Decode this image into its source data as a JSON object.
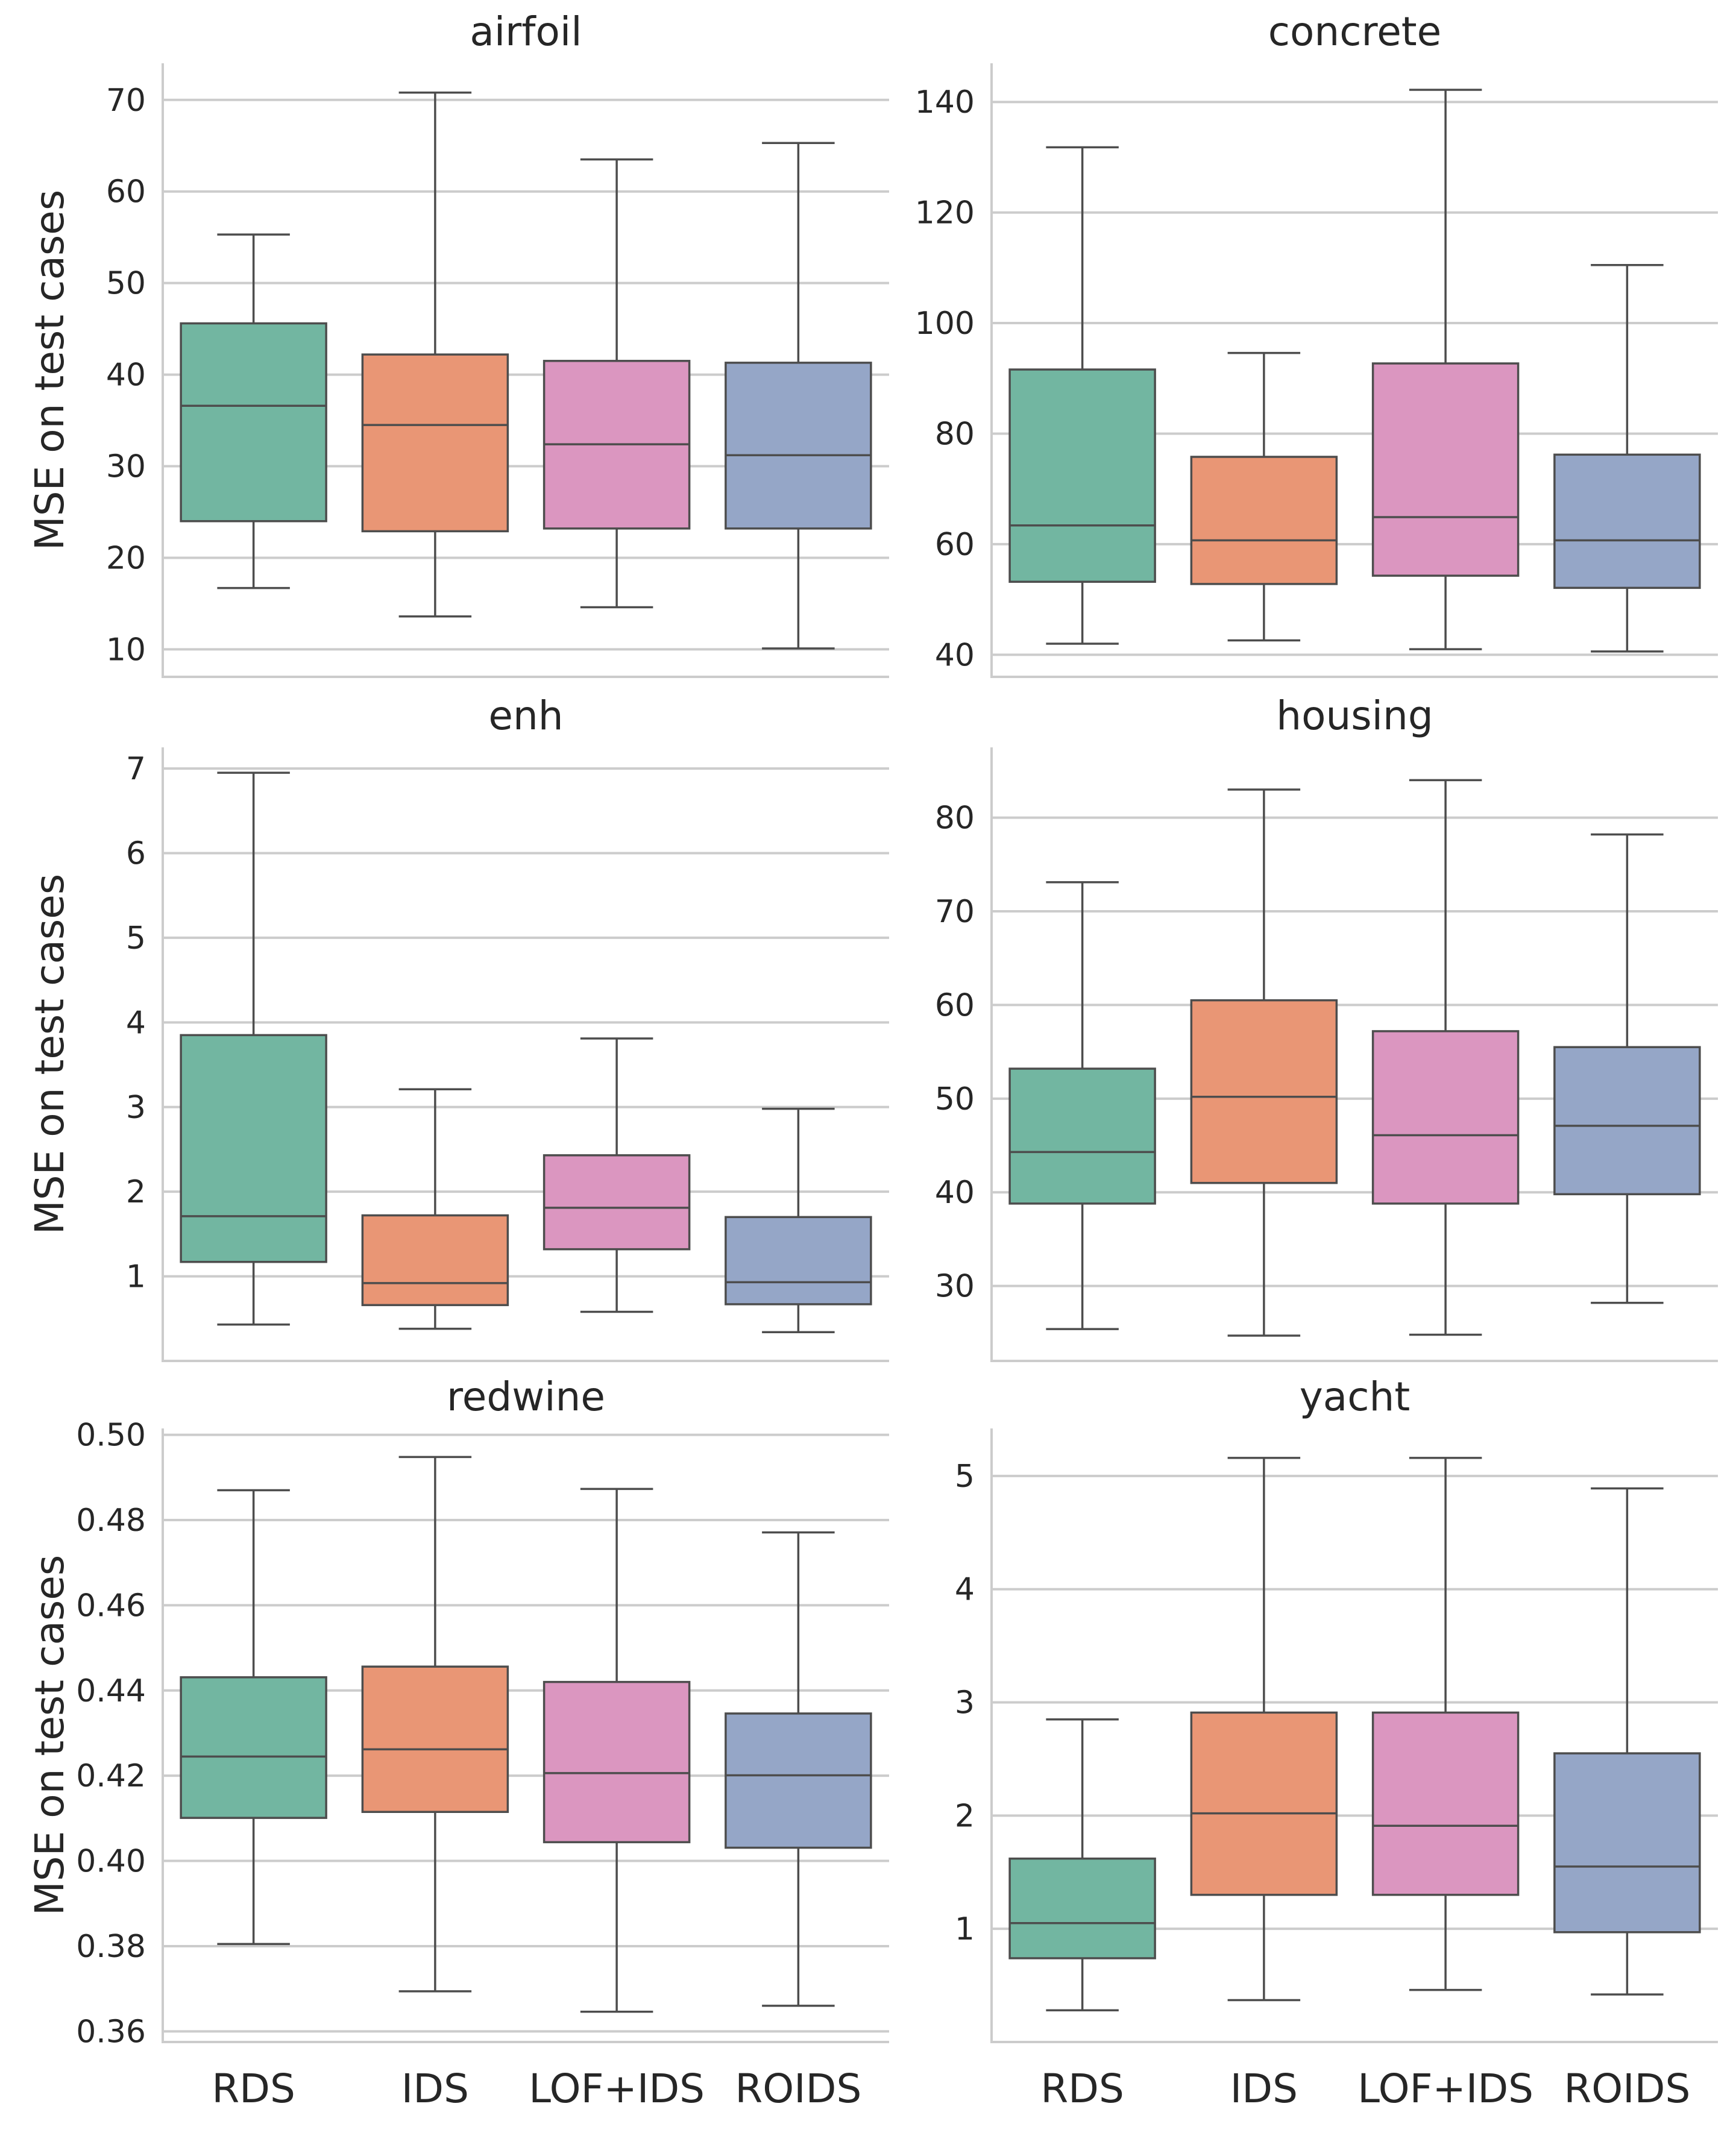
{
  "colors": {
    "RDS": "#72b6a1",
    "IDS": "#e99675",
    "LOF+IDS": "#db96c0",
    "ROIDS": "#95a6c7"
  },
  "categories": [
    "RDS",
    "IDS",
    "LOF+IDS",
    "ROIDS"
  ],
  "ylabel": "MSE on test cases",
  "chart_data": [
    {
      "type": "box",
      "title": "airfoil",
      "categories": [
        "RDS",
        "IDS",
        "LOF+IDS",
        "ROIDS"
      ],
      "ylabel": "MSE on test cases",
      "ylim": [
        7,
        74
      ],
      "yticks": [
        10,
        20,
        30,
        40,
        50,
        60,
        70
      ],
      "yticklabels": [
        "10",
        "20",
        "30",
        "40",
        "50",
        "60",
        "70"
      ],
      "boxes": [
        {
          "min": 16.7,
          "q1": 24.0,
          "median": 36.6,
          "q3": 45.6,
          "max": 55.3
        },
        {
          "min": 13.6,
          "q1": 22.9,
          "median": 34.5,
          "q3": 42.2,
          "max": 70.8
        },
        {
          "min": 14.6,
          "q1": 23.2,
          "median": 32.4,
          "q3": 41.5,
          "max": 63.5
        },
        {
          "min": 10.1,
          "q1": 23.2,
          "median": 31.2,
          "q3": 41.3,
          "max": 65.3
        }
      ]
    },
    {
      "type": "box",
      "title": "concrete",
      "categories": [
        "RDS",
        "IDS",
        "LOF+IDS",
        "ROIDS"
      ],
      "ylabel": "",
      "ylim": [
        36,
        147
      ],
      "yticks": [
        40,
        60,
        80,
        100,
        120,
        140
      ],
      "yticklabels": [
        "40",
        "60",
        "80",
        "100",
        "120",
        "140"
      ],
      "boxes": [
        {
          "min": 42.0,
          "q1": 53.2,
          "median": 63.4,
          "q3": 91.6,
          "max": 131.8
        },
        {
          "min": 42.6,
          "q1": 52.8,
          "median": 60.7,
          "q3": 75.8,
          "max": 94.6
        },
        {
          "min": 41.0,
          "q1": 54.3,
          "median": 64.9,
          "q3": 92.7,
          "max": 142.2
        },
        {
          "min": 40.6,
          "q1": 52.1,
          "median": 60.7,
          "q3": 76.2,
          "max": 110.5
        }
      ]
    },
    {
      "type": "box",
      "title": "enh",
      "categories": [
        "RDS",
        "IDS",
        "LOF+IDS",
        "ROIDS"
      ],
      "ylabel": "MSE on test cases",
      "ylim": [
        0,
        7.25
      ],
      "yticks": [
        1,
        2,
        3,
        4,
        5,
        6,
        7
      ],
      "yticklabels": [
        "1",
        "2",
        "3",
        "4",
        "5",
        "6",
        "7"
      ],
      "boxes": [
        {
          "min": 0.43,
          "q1": 1.17,
          "median": 1.71,
          "q3": 3.85,
          "max": 6.95
        },
        {
          "min": 0.38,
          "q1": 0.66,
          "median": 0.92,
          "q3": 1.72,
          "max": 3.21
        },
        {
          "min": 0.58,
          "q1": 1.32,
          "median": 1.81,
          "q3": 2.43,
          "max": 3.81
        },
        {
          "min": 0.34,
          "q1": 0.67,
          "median": 0.93,
          "q3": 1.7,
          "max": 2.98
        }
      ]
    },
    {
      "type": "box",
      "title": "housing",
      "categories": [
        "RDS",
        "IDS",
        "LOF+IDS",
        "ROIDS"
      ],
      "ylabel": "",
      "ylim": [
        22,
        87.5
      ],
      "yticks": [
        30,
        40,
        50,
        60,
        70,
        80
      ],
      "yticklabels": [
        "30",
        "40",
        "50",
        "60",
        "70",
        "80"
      ],
      "boxes": [
        {
          "min": 25.4,
          "q1": 38.8,
          "median": 44.3,
          "q3": 53.2,
          "max": 73.1
        },
        {
          "min": 24.7,
          "q1": 41.0,
          "median": 50.2,
          "q3": 60.5,
          "max": 83.0
        },
        {
          "min": 24.8,
          "q1": 38.8,
          "median": 46.1,
          "q3": 57.2,
          "max": 84.0
        },
        {
          "min": 28.2,
          "q1": 39.8,
          "median": 47.1,
          "q3": 55.5,
          "max": 78.2
        }
      ]
    },
    {
      "type": "box",
      "title": "redwine",
      "categories": [
        "RDS",
        "IDS",
        "LOF+IDS",
        "ROIDS"
      ],
      "ylabel": "MSE on test cases",
      "ylim": [
        0.3575,
        0.5015
      ],
      "yticks": [
        0.36,
        0.38,
        0.4,
        0.42,
        0.44,
        0.46,
        0.48,
        0.5
      ],
      "yticklabels": [
        "0.36",
        "0.38",
        "0.40",
        "0.42",
        "0.44",
        "0.46",
        "0.48",
        "0.50"
      ],
      "boxes": [
        {
          "min": 0.3805,
          "q1": 0.4101,
          "median": 0.4245,
          "q3": 0.4431,
          "max": 0.487
        },
        {
          "min": 0.3694,
          "q1": 0.4115,
          "median": 0.4262,
          "q3": 0.4456,
          "max": 0.4948
        },
        {
          "min": 0.3646,
          "q1": 0.4044,
          "median": 0.4206,
          "q3": 0.442,
          "max": 0.4873
        },
        {
          "min": 0.366,
          "q1": 0.4031,
          "median": 0.4201,
          "q3": 0.4346,
          "max": 0.4771
        }
      ]
    },
    {
      "type": "box",
      "title": "yacht",
      "categories": [
        "RDS",
        "IDS",
        "LOF+IDS",
        "ROIDS"
      ],
      "ylabel": "",
      "ylim": [
        0,
        5.42
      ],
      "yticks": [
        1,
        2,
        3,
        4,
        5
      ],
      "yticklabels": [
        "1",
        "2",
        "3",
        "4",
        "5"
      ],
      "boxes": [
        {
          "min": 0.28,
          "q1": 0.74,
          "median": 1.05,
          "q3": 1.62,
          "max": 2.85
        },
        {
          "min": 0.37,
          "q1": 1.3,
          "median": 2.02,
          "q3": 2.91,
          "max": 5.16
        },
        {
          "min": 0.46,
          "q1": 1.3,
          "median": 1.91,
          "q3": 2.91,
          "max": 5.16
        },
        {
          "min": 0.42,
          "q1": 0.97,
          "median": 1.55,
          "q3": 2.55,
          "max": 4.89
        }
      ]
    }
  ]
}
